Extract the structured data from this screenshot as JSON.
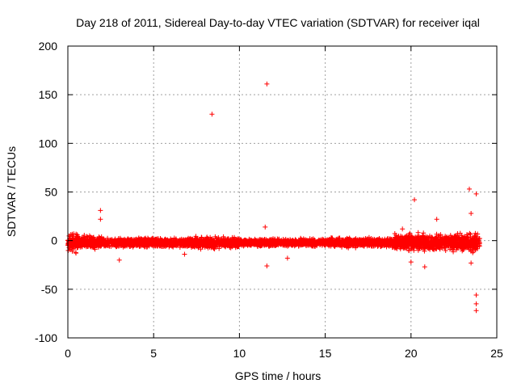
{
  "chart_data": {
    "type": "scatter",
    "title": "Day 218 of 2011, Sidereal Day-to-day VTEC variation (SDTVAR) for receiver iqal",
    "xlabel": "GPS time / hours",
    "ylabel": "SDTVAR / TECUs",
    "xlim": [
      0,
      25
    ],
    "ylim": [
      -100,
      200
    ],
    "xticks": [
      0,
      5,
      10,
      15,
      20,
      25
    ],
    "xtick_labels": [
      "0",
      "5",
      "10",
      "15",
      "20",
      "25"
    ],
    "yticks": [
      -100,
      -50,
      0,
      50,
      100,
      150,
      200
    ],
    "ytick_labels": [
      "-100",
      "-50",
      "0",
      "50",
      "100",
      "150",
      "200"
    ],
    "grid": true,
    "marker": "+",
    "color": "#ff0000",
    "series": [
      {
        "name": "SDTVAR",
        "note": "dense band of points roughly between -10 and +10 TECU across 0-24 h; notable outliers listed",
        "outliers": [
          {
            "x": 1.9,
            "y": 31
          },
          {
            "x": 1.9,
            "y": 22
          },
          {
            "x": 3.0,
            "y": -20
          },
          {
            "x": 6.8,
            "y": -14
          },
          {
            "x": 8.4,
            "y": 130
          },
          {
            "x": 11.5,
            "y": 14
          },
          {
            "x": 11.6,
            "y": -26
          },
          {
            "x": 11.6,
            "y": 161
          },
          {
            "x": 12.8,
            "y": -18
          },
          {
            "x": 19.5,
            "y": 12
          },
          {
            "x": 20.2,
            "y": 42
          },
          {
            "x": 20.0,
            "y": -22
          },
          {
            "x": 20.8,
            "y": -27
          },
          {
            "x": 21.5,
            "y": 22
          },
          {
            "x": 23.4,
            "y": 53
          },
          {
            "x": 23.5,
            "y": 28
          },
          {
            "x": 23.5,
            "y": -23
          },
          {
            "x": 23.8,
            "y": 48
          },
          {
            "x": 23.8,
            "y": -56
          },
          {
            "x": 23.8,
            "y": -65
          },
          {
            "x": 23.8,
            "y": -72
          }
        ]
      }
    ]
  }
}
